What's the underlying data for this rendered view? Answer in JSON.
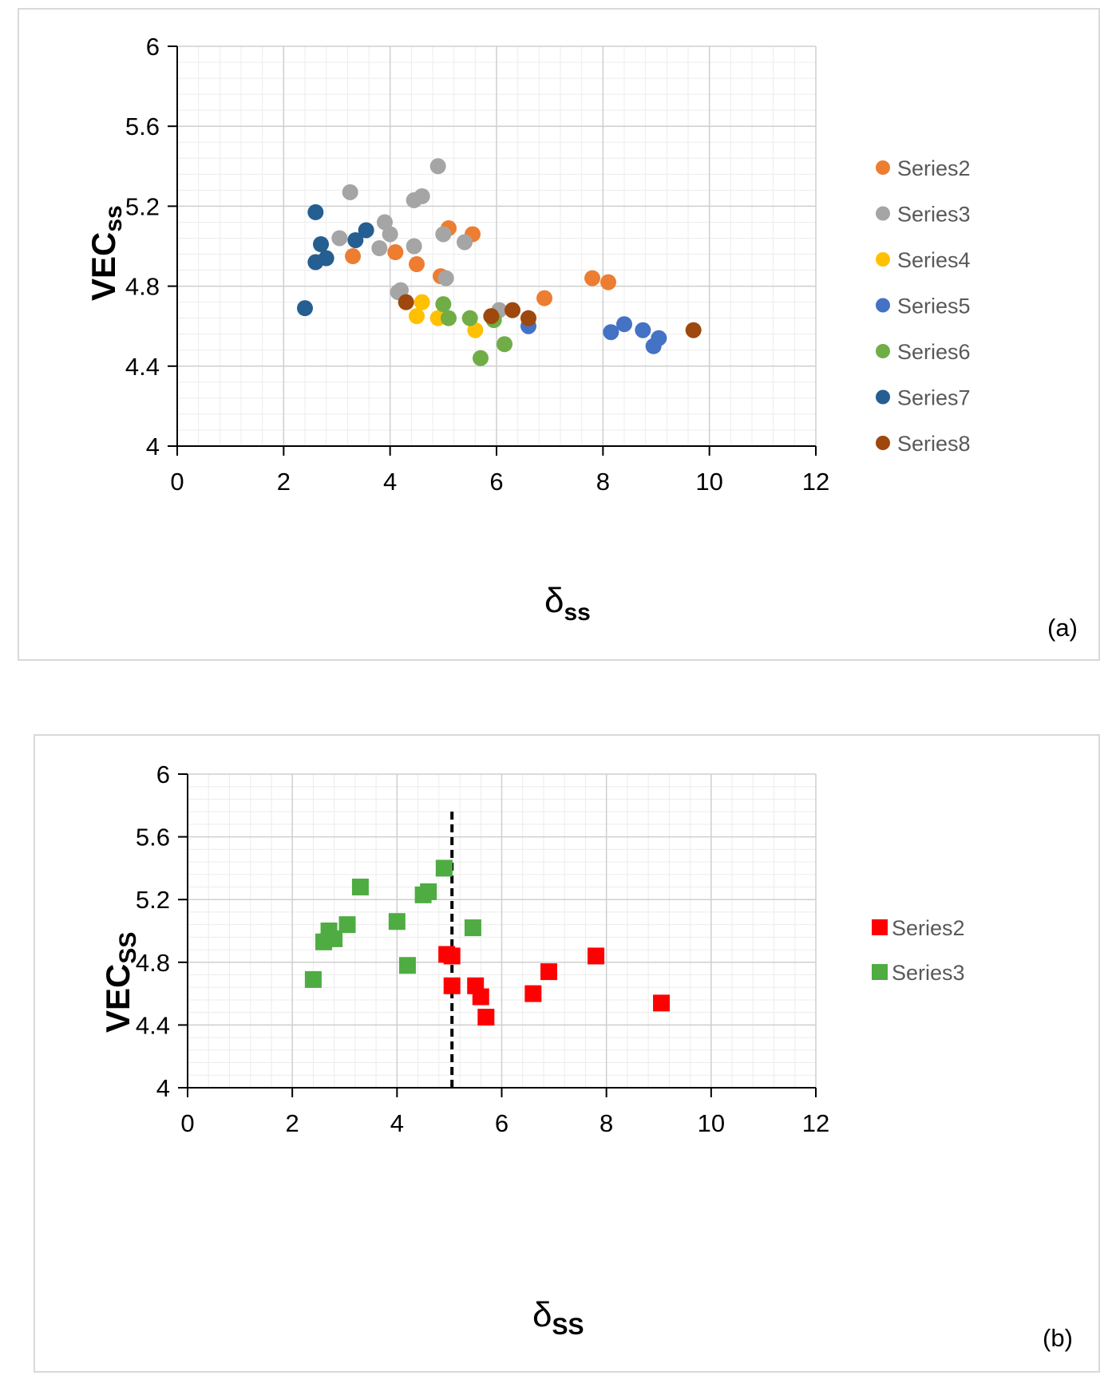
{
  "chart_data": [
    {
      "id": "a",
      "type": "scatter",
      "panel_label": "(a)",
      "title": "",
      "xlabel": "δ",
      "xlabel_sub": "ss",
      "ylabel": "VEC",
      "ylabel_sub": "ss",
      "xlim": [
        0,
        12
      ],
      "ylim": [
        4,
        6
      ],
      "xticks": [
        0,
        2,
        4,
        6,
        8,
        10,
        12
      ],
      "yticks": [
        4,
        4.4,
        4.8,
        5.2,
        5.6,
        6
      ],
      "ytick_labels": [
        "4",
        "4.4",
        "4.8",
        "5.2",
        "5.6",
        "6"
      ],
      "xminor_step": 0.4,
      "yminor_step": 0.08,
      "marker": "circle",
      "legend_position": "right",
      "series": [
        {
          "name": "Series2",
          "color": "#ED7D31",
          "points": [
            [
              3.3,
              4.95
            ],
            [
              4.1,
              4.97
            ],
            [
              4.5,
              4.91
            ],
            [
              5.1,
              5.09
            ],
            [
              5.55,
              5.06
            ],
            [
              4.95,
              4.85
            ],
            [
              6.9,
              4.74
            ],
            [
              7.8,
              4.84
            ],
            [
              8.1,
              4.82
            ]
          ]
        },
        {
          "name": "Series3",
          "color": "#A5A5A5",
          "points": [
            [
              3.05,
              5.04
            ],
            [
              3.25,
              5.27
            ],
            [
              3.8,
              4.99
            ],
            [
              3.9,
              5.12
            ],
            [
              4.0,
              5.06
            ],
            [
              4.15,
              4.77
            ],
            [
              4.2,
              4.78
            ],
            [
              4.45,
              5.23
            ],
            [
              4.6,
              5.25
            ],
            [
              4.45,
              5.0
            ],
            [
              4.9,
              5.4
            ],
            [
              5.0,
              5.06
            ],
            [
              5.05,
              4.84
            ],
            [
              5.4,
              5.02
            ],
            [
              6.05,
              4.68
            ]
          ]
        },
        {
          "name": "Series4",
          "color": "#FFC000",
          "points": [
            [
              4.5,
              4.65
            ],
            [
              4.6,
              4.72
            ],
            [
              4.9,
              4.64
            ],
            [
              5.6,
              4.58
            ]
          ]
        },
        {
          "name": "Series5",
          "color": "#4472C4",
          "points": [
            [
              6.6,
              4.6
            ],
            [
              8.15,
              4.57
            ],
            [
              8.4,
              4.61
            ],
            [
              8.75,
              4.58
            ],
            [
              8.95,
              4.5
            ],
            [
              9.05,
              4.54
            ]
          ]
        },
        {
          "name": "Series6",
          "color": "#70AD47",
          "points": [
            [
              5.0,
              4.71
            ],
            [
              5.1,
              4.64
            ],
            [
              5.5,
              4.64
            ],
            [
              5.7,
              4.44
            ],
            [
              5.95,
              4.63
            ],
            [
              6.15,
              4.51
            ]
          ]
        },
        {
          "name": "Series7",
          "color": "#255E91",
          "points": [
            [
              2.4,
              4.69
            ],
            [
              2.6,
              4.92
            ],
            [
              2.6,
              5.17
            ],
            [
              2.7,
              5.01
            ],
            [
              2.8,
              4.94
            ],
            [
              3.35,
              5.03
            ],
            [
              3.55,
              5.08
            ]
          ]
        },
        {
          "name": "Series8",
          "color": "#9E480E",
          "points": [
            [
              4.3,
              4.72
            ],
            [
              5.9,
              4.65
            ],
            [
              6.3,
              4.68
            ],
            [
              6.6,
              4.64
            ],
            [
              9.7,
              4.58
            ]
          ]
        }
      ]
    },
    {
      "id": "b",
      "type": "scatter",
      "panel_label": "(b)",
      "title": "",
      "xlabel": "δ",
      "xlabel_sub": "SS",
      "ylabel": "VEC",
      "ylabel_sub": "SS",
      "xlim": [
        0,
        12
      ],
      "ylim": [
        4,
        6
      ],
      "xticks": [
        0,
        2,
        4,
        6,
        8,
        10,
        12
      ],
      "yticks": [
        4,
        4.4,
        4.8,
        5.2,
        5.6,
        6
      ],
      "ytick_labels": [
        "4",
        "4.4",
        "4.8",
        "5.2",
        "5.6",
        "6"
      ],
      "xminor_step": 0.4,
      "yminor_step": 0.08,
      "marker": "square",
      "legend_position": "right",
      "reference_line": {
        "x": 5.05,
        "y_from": 4,
        "y_to": 5.77,
        "style": "dashed",
        "color": "#000000"
      },
      "series": [
        {
          "name": "Series2",
          "color": "#FF0000",
          "points": [
            [
              4.95,
              4.85
            ],
            [
              5.05,
              4.84
            ],
            [
              5.05,
              4.65
            ],
            [
              5.5,
              4.65
            ],
            [
              5.6,
              4.58
            ],
            [
              5.7,
              4.45
            ],
            [
              6.6,
              4.6
            ],
            [
              6.9,
              4.74
            ],
            [
              7.8,
              4.84
            ],
            [
              9.05,
              4.54
            ]
          ]
        },
        {
          "name": "Series3",
          "color": "#4EAC42",
          "points": [
            [
              2.4,
              4.69
            ],
            [
              2.6,
              4.93
            ],
            [
              2.7,
              5.0
            ],
            [
              2.8,
              4.95
            ],
            [
              3.05,
              5.04
            ],
            [
              3.3,
              5.28
            ],
            [
              4.0,
              5.06
            ],
            [
              4.2,
              4.78
            ],
            [
              4.5,
              5.23
            ],
            [
              4.6,
              5.25
            ],
            [
              4.9,
              5.4
            ],
            [
              5.45,
              5.02
            ]
          ]
        }
      ]
    }
  ]
}
